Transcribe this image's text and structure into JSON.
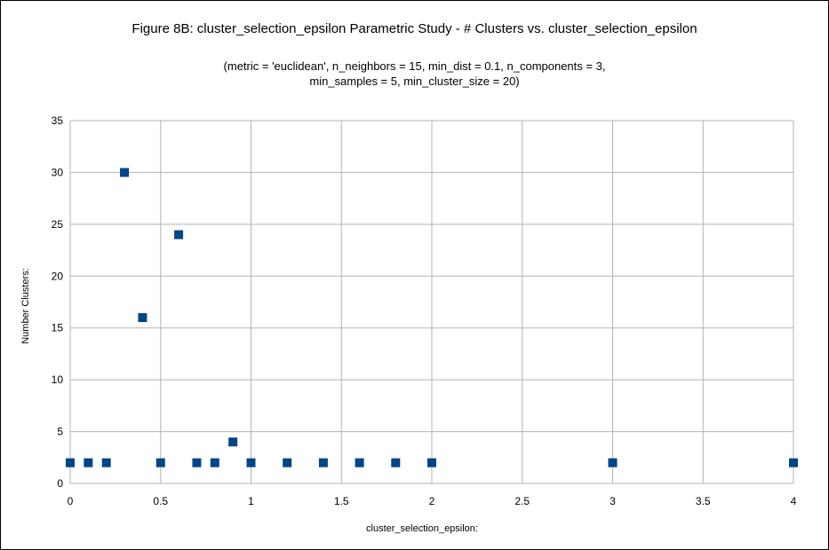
{
  "chart_data": {
    "type": "scatter",
    "title": "Figure 8B: cluster_selection_epsilon Parametric Study - # Clusters vs. cluster_selection_epsilon",
    "subtitle_lines": [
      "(metric = 'euclidean', n_neighbors = 15, min_dist = 0.1, n_components = 3,",
      "min_samples = 5, min_cluster_size = 20)"
    ],
    "xlabel": "cluster_selection_epsilon:",
    "ylabel": "Number Clusters:",
    "xlim": [
      0,
      4
    ],
    "ylim": [
      0,
      35
    ],
    "x_ticks": [
      0,
      0.5,
      1,
      1.5,
      2,
      2.5,
      3,
      3.5,
      4
    ],
    "y_ticks": [
      0,
      5,
      10,
      15,
      20,
      25,
      30,
      35
    ],
    "grid": true,
    "marker": "square",
    "color": "#004586",
    "x": [
      0,
      0.1,
      0.2,
      0.3,
      0.4,
      0.5,
      0.6,
      0.7,
      0.8,
      0.9,
      1.0,
      1.2,
      1.4,
      1.6,
      1.8,
      2.0,
      3.0,
      4.0
    ],
    "y": [
      2,
      2,
      2,
      30,
      16,
      2,
      24,
      2,
      2,
      4,
      2,
      2,
      2,
      2,
      2,
      2,
      2,
      2
    ]
  }
}
